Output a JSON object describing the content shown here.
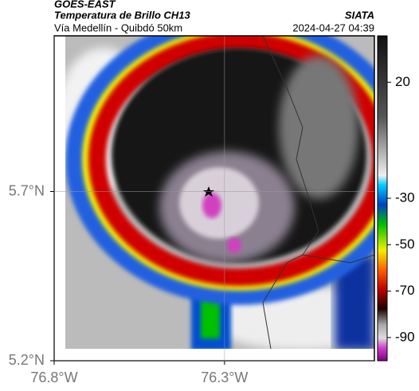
{
  "header": {
    "title": "GOES-EAST",
    "subtitle": "Temperatura de Brillo CH13",
    "location": "Vía Medellín - Quibdó 50km",
    "source": "SIATA",
    "datetime": "2024-04-27 04:39"
  },
  "map": {
    "xlim": [
      -76.8,
      -75.86
    ],
    "ylim": [
      5.2,
      6.16
    ],
    "xticks": [
      {
        "value": -76.8,
        "label": "76.8°W"
      },
      {
        "value": -76.3,
        "label": "76.3°W"
      }
    ],
    "yticks": [
      {
        "value": 5.7,
        "label": "5.7°N"
      },
      {
        "value": 5.2,
        "label": "5.2°N"
      }
    ]
  },
  "colorbar": {
    "lim": [
      40,
      -100
    ],
    "ticks": [
      20,
      -30,
      -50,
      -70,
      -90
    ]
  }
}
